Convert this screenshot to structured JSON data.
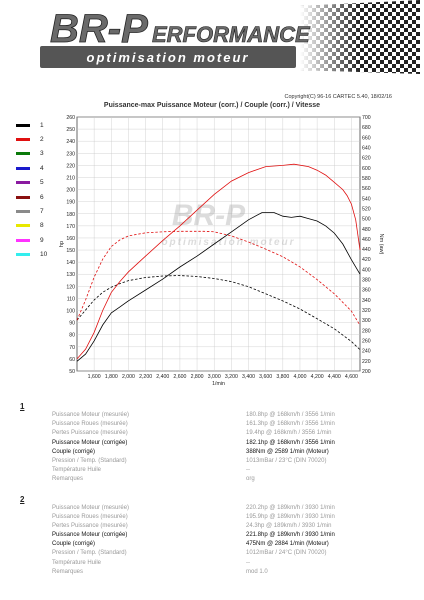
{
  "header": {
    "brand": "BR-Performance",
    "logo_main": "BR-P",
    "logo_tail": "ERFORMANCE",
    "tagline": "optimisation moteur"
  },
  "copyright": "Copyright(C) 96-16 CARTEC 5.40, 18/02/16",
  "chart_title": "Puissance-max Puissance Moteur (corr.) / Couple (corr.) / Vitesse",
  "legend": [
    {
      "num": "1",
      "color": "#000000"
    },
    {
      "num": "2",
      "color": "#e01010"
    },
    {
      "num": "3",
      "color": "#0a7a0a"
    },
    {
      "num": "4",
      "color": "#1a1acc"
    },
    {
      "num": "5",
      "color": "#8a1aa0"
    },
    {
      "num": "6",
      "color": "#8a1010"
    },
    {
      "num": "7",
      "color": "#8a8a8a"
    },
    {
      "num": "8",
      "color": "#e8e800"
    },
    {
      "num": "9",
      "color": "#ff33ff"
    },
    {
      "num": "10",
      "color": "#33eeee"
    }
  ],
  "chart_data": {
    "type": "line",
    "xlabel": "1/min",
    "ylabel_left": "hp",
    "ylabel_right": "Nm (aw)",
    "xlim": [
      1400,
      4700
    ],
    "ylim_left": [
      50,
      260
    ],
    "ylim_right": [
      200,
      700
    ],
    "x_ticks": [
      "1,600",
      "1,800",
      "2,000",
      "2,200",
      "2,400",
      "2,600",
      "2,800",
      "3,000",
      "3,200",
      "3,400",
      "3,600",
      "3,800",
      "4,000",
      "4,200",
      "4,400",
      "4,600"
    ],
    "watermark": "BR-PERFORMANCE optimisation moteur",
    "series": [
      {
        "name": "1",
        "color": "#000000",
        "style": "solid",
        "axis": "left",
        "x": [
          1400,
          1500,
          1600,
          1700,
          1800,
          1900,
          2000,
          2200,
          2400,
          2600,
          2800,
          3000,
          3200,
          3400,
          3556,
          3700,
          3800,
          3900,
          4000,
          4100,
          4200,
          4300,
          4400,
          4500,
          4600,
          4700
        ],
        "y": [
          58,
          64,
          75,
          88,
          98,
          103,
          108,
          117,
          126,
          136,
          145,
          155,
          165,
          175,
          181,
          181,
          178,
          177,
          178,
          176,
          174,
          170,
          164,
          155,
          142,
          130
        ]
      },
      {
        "name": "1",
        "color": "#000000",
        "style": "dashed",
        "axis": "right",
        "x": [
          1400,
          1500,
          1600,
          1700,
          1800,
          1900,
          2000,
          2200,
          2400,
          2589,
          2800,
          3000,
          3200,
          3400,
          3600,
          3800,
          4000,
          4200,
          4400,
          4600,
          4700
        ],
        "y": [
          300,
          320,
          340,
          355,
          365,
          372,
          378,
          384,
          387,
          388,
          386,
          382,
          376,
          366,
          352,
          338,
          322,
          303,
          283,
          258,
          242
        ]
      },
      {
        "name": "2",
        "color": "#e01010",
        "style": "solid",
        "axis": "left",
        "x": [
          1400,
          1500,
          1600,
          1700,
          1800,
          1900,
          2000,
          2200,
          2400,
          2600,
          2800,
          3000,
          3200,
          3400,
          3600,
          3800,
          3930,
          4100,
          4200,
          4300,
          4400,
          4500,
          4550,
          4600,
          4650,
          4700
        ],
        "y": [
          60,
          68,
          82,
          100,
          115,
          124,
          132,
          145,
          158,
          170,
          183,
          196,
          207,
          214,
          219,
          220,
          221,
          219,
          216,
          212,
          206,
          200,
          195,
          188,
          175,
          150
        ]
      },
      {
        "name": "2",
        "color": "#e01010",
        "style": "dashed",
        "axis": "right",
        "x": [
          1400,
          1500,
          1600,
          1700,
          1800,
          1900,
          2000,
          2200,
          2400,
          2600,
          2884,
          3000,
          3200,
          3400,
          3600,
          3800,
          4000,
          4200,
          4400,
          4600,
          4700
        ],
        "y": [
          300,
          340,
          385,
          420,
          445,
          458,
          466,
          472,
          474,
          475,
          475,
          474,
          466,
          454,
          440,
          425,
          405,
          380,
          352,
          318,
          290
        ]
      }
    ]
  },
  "results": [
    {
      "num": "1",
      "rows": [
        {
          "label": "Puissance Moteur (mesurée)",
          "value": "180.8hp @ 168km/h / 3556 1/min",
          "tone": "grey"
        },
        {
          "label": "Puissance Roues (mesurée)",
          "value": "161.3hp @ 168km/h / 3556 1/min",
          "tone": "grey"
        },
        {
          "label": "Pertes Puissance (mesurée)",
          "value": "19.4hp @ 168km/h / 3556 1/min",
          "tone": "grey"
        },
        {
          "label": "Puissance Moteur (corrigée)",
          "value": "182.1hp @ 168km/h / 3556 1/min",
          "tone": "dark"
        },
        {
          "label": "Couple (corrigé)",
          "value": "388Nm @ 2589 1/min (Moteur)",
          "tone": "dark"
        },
        {
          "label": "Pression / Temp. (Standard)",
          "value": "1013mBar / 23°C   (DIN 70020)",
          "tone": "grey"
        },
        {
          "label": "Température Huile",
          "value": "--",
          "tone": "grey"
        },
        {
          "label": "Remarques",
          "value": "org",
          "tone": "grey"
        }
      ]
    },
    {
      "num": "2",
      "rows": [
        {
          "label": "Puissance Moteur (mesurée)",
          "value": "220.2hp @ 189km/h / 3930 1/min",
          "tone": "grey"
        },
        {
          "label": "Puissance Roues (mesurée)",
          "value": "195.9hp @ 189km/h / 3930 1/min",
          "tone": "grey"
        },
        {
          "label": "Pertes Puissance (mesurée)",
          "value": "24.3hp @ 189km/h / 3930 1/min",
          "tone": "grey"
        },
        {
          "label": "Puissance Moteur (corrigée)",
          "value": "221.8hp @ 189km/h / 3930 1/min",
          "tone": "dark"
        },
        {
          "label": "Couple (corrigé)",
          "value": "475Nm @ 2884 1/min (Moteur)",
          "tone": "dark"
        },
        {
          "label": "Pression / Temp. (Standard)",
          "value": "1012mBar / 24°C   (DIN 70020)",
          "tone": "grey"
        },
        {
          "label": "Température Huile",
          "value": "--",
          "tone": "grey"
        },
        {
          "label": "Remarques",
          "value": "mod 1.0",
          "tone": "grey"
        }
      ]
    }
  ]
}
